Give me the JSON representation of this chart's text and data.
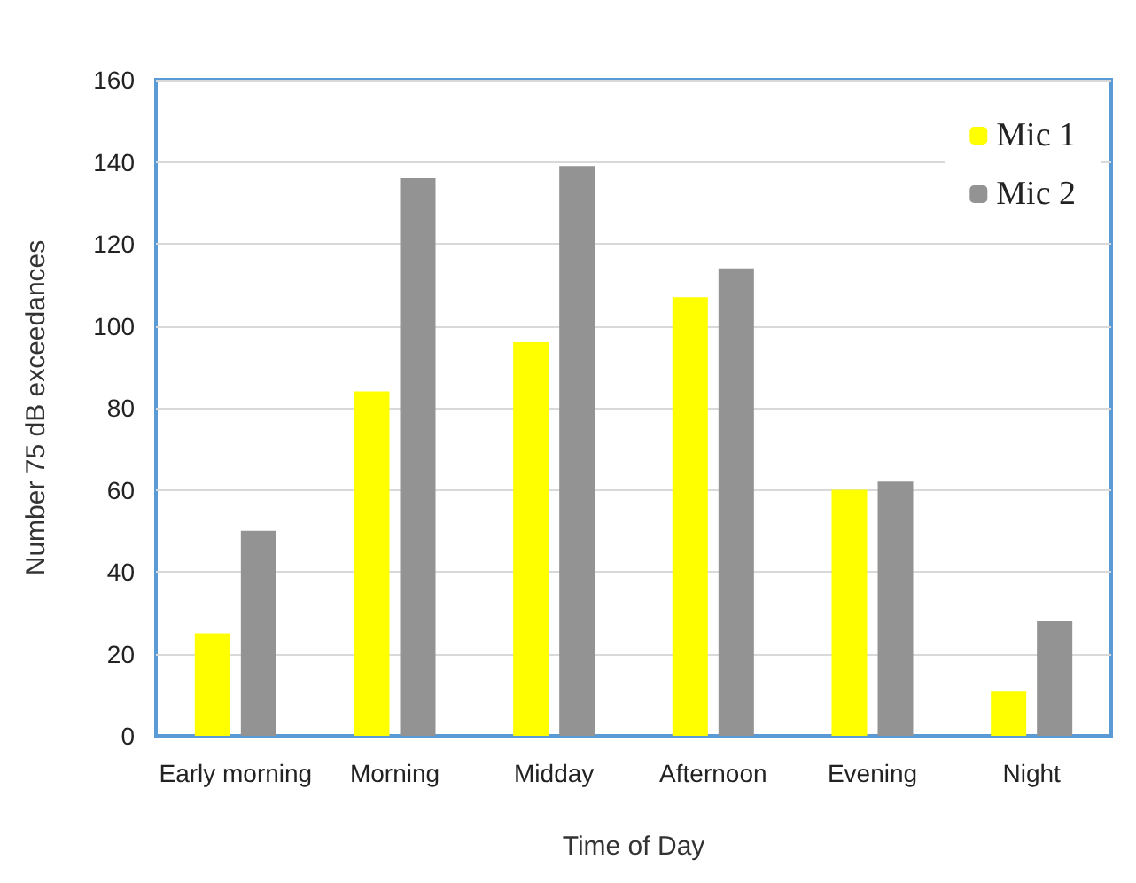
{
  "chart_data": {
    "type": "bar",
    "xlabel": "Time of Day",
    "ylabel": "Number 75 dB exceedances",
    "categories": [
      "Early morning",
      "Morning",
      "Midday",
      "Afternoon",
      "Evening",
      "Night"
    ],
    "series": [
      {
        "name": "Mic 1",
        "color": "#ffff00",
        "values": [
          25,
          84,
          96,
          107,
          60,
          11
        ]
      },
      {
        "name": "Mic 2",
        "color": "#939393",
        "values": [
          50,
          136,
          139,
          114,
          62,
          28
        ]
      }
    ],
    "ylim": [
      0,
      160
    ],
    "yticks": [
      0,
      20,
      40,
      60,
      80,
      100,
      120,
      140,
      160
    ],
    "grid": "y",
    "legend": "top right"
  }
}
